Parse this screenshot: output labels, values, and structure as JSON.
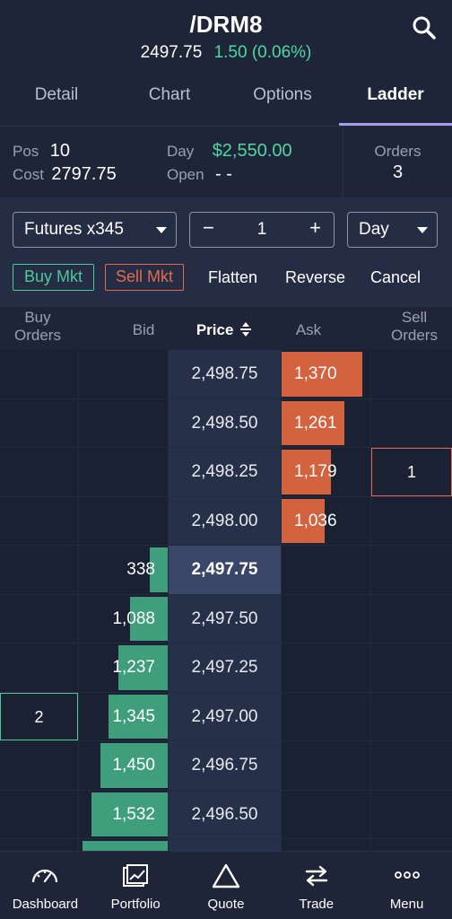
{
  "header": {
    "symbol": "/DRM8",
    "price": "2497.75",
    "change": "1.50 (0.06%)"
  },
  "tabs": [
    {
      "label": "Detail"
    },
    {
      "label": "Chart"
    },
    {
      "label": "Options"
    },
    {
      "label": "Ladder",
      "active": true
    }
  ],
  "position": {
    "pos_label": "Pos",
    "pos_value": "10",
    "cost_label": "Cost",
    "cost_value": "2797.75",
    "day_label": "Day",
    "day_value": "$2,550.00",
    "open_label": "Open",
    "open_value": "- -",
    "orders_label": "Orders",
    "orders_value": "3"
  },
  "controls": {
    "account": "Futures x345",
    "quantity": "1",
    "minus": "−",
    "plus": "+",
    "tif": "Day",
    "buy_mkt": "Buy Mkt",
    "sell_mkt": "Sell Mkt",
    "flatten": "Flatten",
    "reverse": "Reverse",
    "cancel": "Cancel"
  },
  "ladder_headers": {
    "buy_orders_1": "Buy",
    "buy_orders_2": "Orders",
    "bid": "Bid",
    "price": "Price",
    "ask": "Ask",
    "sell_orders_1": "Sell",
    "sell_orders_2": "Orders"
  },
  "ladder": [
    {
      "price": "2,498.75",
      "ask": "1,370",
      "ask_fill": 0.91,
      "bid": "",
      "bid_fill": 0,
      "buy_order": "",
      "sell_order": ""
    },
    {
      "price": "2,498.50",
      "ask": "1,261",
      "ask_fill": 0.71,
      "bid": "",
      "bid_fill": 0,
      "buy_order": "",
      "sell_order": ""
    },
    {
      "price": "2,498.25",
      "ask": "1,179",
      "ask_fill": 0.56,
      "bid": "",
      "bid_fill": 0,
      "buy_order": "",
      "sell_order": "1"
    },
    {
      "price": "2,498.00",
      "ask": "1,036",
      "ask_fill": 0.48,
      "bid": "",
      "bid_fill": 0,
      "buy_order": "",
      "sell_order": ""
    },
    {
      "price": "2,497.75",
      "ask": "",
      "ask_fill": 0,
      "bid": "338",
      "bid_fill": 0.2,
      "buy_order": "",
      "sell_order": "",
      "current": true
    },
    {
      "price": "2,497.50",
      "ask": "",
      "ask_fill": 0,
      "bid": "1,088",
      "bid_fill": 0.42,
      "buy_order": "",
      "sell_order": ""
    },
    {
      "price": "2,497.25",
      "ask": "",
      "ask_fill": 0,
      "bid": "1,237",
      "bid_fill": 0.56,
      "buy_order": "",
      "sell_order": ""
    },
    {
      "price": "2,497.00",
      "ask": "",
      "ask_fill": 0,
      "bid": "1,345",
      "bid_fill": 0.67,
      "buy_order": "2",
      "sell_order": ""
    },
    {
      "price": "2,496.75",
      "ask": "",
      "ask_fill": 0,
      "bid": "1,450",
      "bid_fill": 0.76,
      "buy_order": "",
      "sell_order": ""
    },
    {
      "price": "2,496.50",
      "ask": "",
      "ask_fill": 0,
      "bid": "1,532",
      "bid_fill": 0.86,
      "buy_order": "",
      "sell_order": ""
    },
    {
      "price": "",
      "ask": "",
      "ask_fill": 0,
      "bid": "",
      "bid_fill": 0.96,
      "buy_order": "",
      "sell_order": ""
    }
  ],
  "nav": [
    {
      "label": "Dashboard",
      "icon": "gauge-icon"
    },
    {
      "label": "Portfolio",
      "icon": "portfolio-icon"
    },
    {
      "label": "Quote",
      "icon": "triangle-icon"
    },
    {
      "label": "Trade",
      "icon": "arrows-icon"
    },
    {
      "label": "Menu",
      "icon": "ellipsis-icon"
    }
  ],
  "colors": {
    "background": "#1b2236",
    "positive": "#4fd7a0",
    "ask_bar": "#d3623f",
    "bid_bar": "#3f9f7c",
    "tab_accent": "#a79cf0"
  }
}
